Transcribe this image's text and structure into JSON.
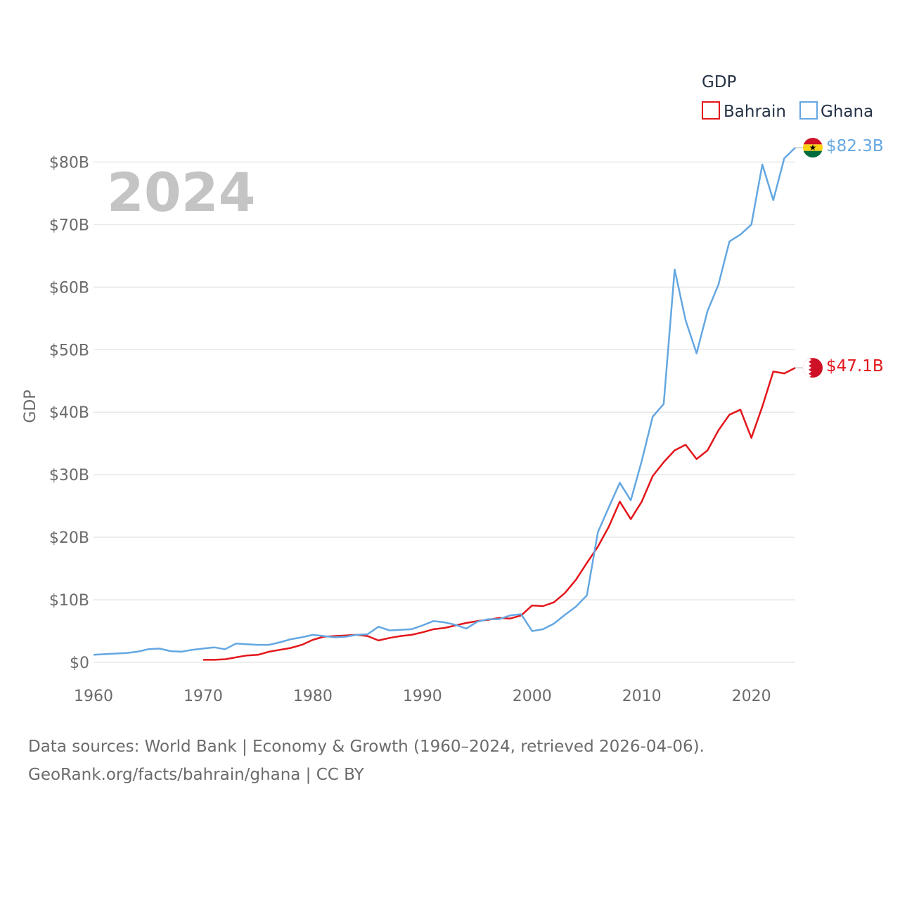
{
  "chart_data": {
    "type": "line",
    "title": "",
    "year_label": "2024",
    "xlabel": "",
    "ylabel": "GDP",
    "xlim": [
      1960,
      2024
    ],
    "ylim": [
      0,
      85
    ],
    "x_ticks": [
      1960,
      1970,
      1980,
      1990,
      2000,
      2010,
      2020
    ],
    "y_ticks": [
      0,
      10,
      20,
      30,
      40,
      50,
      60,
      70,
      80
    ],
    "y_tick_labels": [
      "$0",
      "$10B",
      "$20B",
      "$30B",
      "$40B",
      "$50B",
      "$60B",
      "$70B",
      "$80B"
    ],
    "units": "USD billions",
    "legend": {
      "title": "GDP",
      "position": "top-right"
    },
    "series": [
      {
        "name": "Bahrain",
        "color": "#e3161b",
        "end_label": "$47.1B",
        "points": [
          [
            1970,
            0.4
          ],
          [
            1971,
            0.4
          ],
          [
            1972,
            0.5
          ],
          [
            1973,
            0.8
          ],
          [
            1974,
            1.1
          ],
          [
            1975,
            1.2
          ],
          [
            1976,
            1.7
          ],
          [
            1977,
            2.0
          ],
          [
            1978,
            2.3
          ],
          [
            1979,
            2.8
          ],
          [
            1980,
            3.6
          ],
          [
            1981,
            4.1
          ],
          [
            1982,
            4.2
          ],
          [
            1983,
            4.3
          ],
          [
            1984,
            4.4
          ],
          [
            1985,
            4.2
          ],
          [
            1986,
            3.5
          ],
          [
            1987,
            3.9
          ],
          [
            1988,
            4.2
          ],
          [
            1989,
            4.4
          ],
          [
            1990,
            4.8
          ],
          [
            1991,
            5.3
          ],
          [
            1992,
            5.5
          ],
          [
            1993,
            5.9
          ],
          [
            1994,
            6.3
          ],
          [
            1995,
            6.6
          ],
          [
            1996,
            6.8
          ],
          [
            1997,
            7.1
          ],
          [
            1998,
            7.0
          ],
          [
            1999,
            7.5
          ],
          [
            2000,
            9.1
          ],
          [
            2001,
            9.0
          ],
          [
            2002,
            9.6
          ],
          [
            2003,
            11.1
          ],
          [
            2004,
            13.2
          ],
          [
            2005,
            15.9
          ],
          [
            2006,
            18.5
          ],
          [
            2007,
            21.7
          ],
          [
            2008,
            25.7
          ],
          [
            2009,
            22.9
          ],
          [
            2010,
            25.7
          ],
          [
            2011,
            29.8
          ],
          [
            2012,
            32.0
          ],
          [
            2013,
            33.9
          ],
          [
            2014,
            34.8
          ],
          [
            2015,
            32.5
          ],
          [
            2016,
            33.9
          ],
          [
            2017,
            37.1
          ],
          [
            2018,
            39.6
          ],
          [
            2019,
            40.4
          ],
          [
            2020,
            35.9
          ],
          [
            2021,
            40.9
          ],
          [
            2022,
            46.5
          ],
          [
            2023,
            46.2
          ],
          [
            2024,
            47.1
          ]
        ]
      },
      {
        "name": "Ghana",
        "color": "#64a7e2",
        "end_label": "$82.3B",
        "points": [
          [
            1960,
            1.2
          ],
          [
            1961,
            1.3
          ],
          [
            1962,
            1.4
          ],
          [
            1963,
            1.5
          ],
          [
            1964,
            1.7
          ],
          [
            1965,
            2.1
          ],
          [
            1966,
            2.2
          ],
          [
            1967,
            1.8
          ],
          [
            1968,
            1.7
          ],
          [
            1969,
            2.0
          ],
          [
            1970,
            2.2
          ],
          [
            1971,
            2.4
          ],
          [
            1972,
            2.1
          ],
          [
            1973,
            3.0
          ],
          [
            1974,
            2.9
          ],
          [
            1975,
            2.8
          ],
          [
            1976,
            2.8
          ],
          [
            1977,
            3.2
          ],
          [
            1978,
            3.7
          ],
          [
            1979,
            4.0
          ],
          [
            1980,
            4.4
          ],
          [
            1981,
            4.2
          ],
          [
            1982,
            4.0
          ],
          [
            1983,
            4.1
          ],
          [
            1984,
            4.4
          ],
          [
            1985,
            4.5
          ],
          [
            1986,
            5.7
          ],
          [
            1987,
            5.1
          ],
          [
            1988,
            5.2
          ],
          [
            1989,
            5.3
          ],
          [
            1990,
            5.9
          ],
          [
            1991,
            6.6
          ],
          [
            1992,
            6.4
          ],
          [
            1993,
            6.0
          ],
          [
            1994,
            5.4
          ],
          [
            1995,
            6.5
          ],
          [
            1996,
            6.9
          ],
          [
            1997,
            6.9
          ],
          [
            1998,
            7.5
          ],
          [
            1999,
            7.7
          ],
          [
            2000,
            5.0
          ],
          [
            2001,
            5.3
          ],
          [
            2002,
            6.2
          ],
          [
            2003,
            7.6
          ],
          [
            2004,
            8.9
          ],
          [
            2005,
            10.7
          ],
          [
            2006,
            20.8
          ],
          [
            2007,
            24.8
          ],
          [
            2008,
            28.7
          ],
          [
            2009,
            25.9
          ],
          [
            2010,
            32.2
          ],
          [
            2011,
            39.3
          ],
          [
            2012,
            41.3
          ],
          [
            2013,
            62.8
          ],
          [
            2014,
            54.7
          ],
          [
            2015,
            49.4
          ],
          [
            2016,
            56.2
          ],
          [
            2017,
            60.4
          ],
          [
            2018,
            67.3
          ],
          [
            2019,
            68.4
          ],
          [
            2020,
            70.0
          ],
          [
            2021,
            79.6
          ],
          [
            2022,
            73.9
          ],
          [
            2023,
            80.6
          ],
          [
            2024,
            82.3
          ]
        ]
      }
    ]
  },
  "footer": {
    "line1": "Data sources: World Bank | Economy & Growth (1960–2024, retrieved 2026-04-06).",
    "line2": "GeoRank.org/facts/bahrain/ghana | CC BY"
  }
}
